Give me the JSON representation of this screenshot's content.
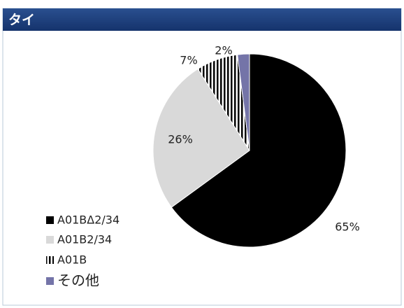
{
  "chart_data": {
    "type": "pie",
    "title": "タイ",
    "categories": [
      "A01BΔ2/34",
      "A01B2/34",
      "A01B",
      "その他"
    ],
    "values": [
      65,
      26,
      7,
      2
    ],
    "value_labels": [
      "65%",
      "26%",
      "7%",
      "2%"
    ],
    "colors": [
      "#000000",
      "#d9d9d9",
      "#000000",
      "#7474a8"
    ],
    "hatched": [
      false,
      false,
      true,
      false
    ],
    "legend": "bottom-left"
  }
}
